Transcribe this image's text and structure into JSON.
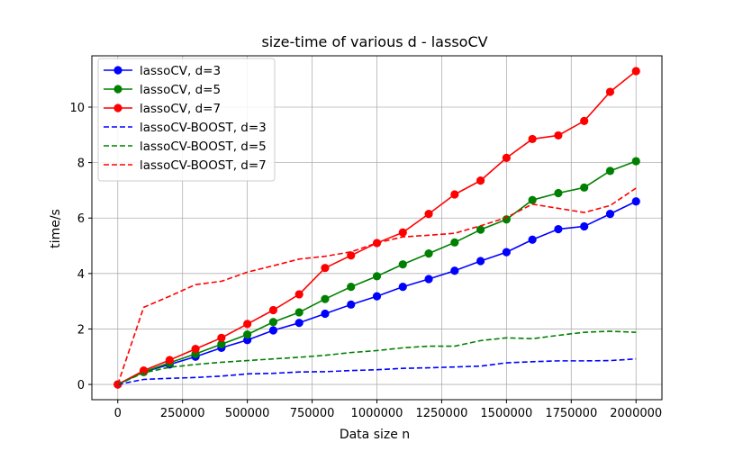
{
  "chart_data": {
    "type": "line",
    "title": "size-time of various d - lassoCV",
    "xlabel": "Data size n",
    "ylabel": "time/s",
    "xlim": [
      -100000,
      2100000
    ],
    "ylim": [
      -0.55,
      11.85
    ],
    "xticks": [
      0,
      250000,
      500000,
      750000,
      1000000,
      1250000,
      1500000,
      1750000,
      2000000
    ],
    "yticks": [
      0,
      2,
      4,
      6,
      8,
      10
    ],
    "grid": true,
    "legend_position": "upper-left",
    "x": [
      0,
      100000,
      200000,
      300000,
      400000,
      500000,
      600000,
      700000,
      800000,
      900000,
      1000000,
      1100000,
      1200000,
      1300000,
      1400000,
      1500000,
      1600000,
      1700000,
      1800000,
      1900000,
      2000000
    ],
    "series": [
      {
        "name": "lassoCV, d=3",
        "color": "#0000ff",
        "style": "solid-marker",
        "values": [
          0.0,
          0.45,
          0.72,
          1.0,
          1.32,
          1.6,
          1.95,
          2.22,
          2.55,
          2.88,
          3.18,
          3.52,
          3.8,
          4.1,
          4.45,
          4.77,
          5.22,
          5.6,
          5.7,
          6.15,
          6.6
        ]
      },
      {
        "name": "lassoCV, d=5",
        "color": "#008000",
        "style": "solid-marker",
        "values": [
          0.0,
          0.45,
          0.78,
          1.1,
          1.45,
          1.8,
          2.25,
          2.6,
          3.08,
          3.52,
          3.9,
          4.33,
          4.72,
          5.12,
          5.58,
          5.95,
          6.65,
          6.9,
          7.1,
          7.7,
          8.05
        ]
      },
      {
        "name": "lassoCV, d=7",
        "color": "#ff0000",
        "style": "solid-marker",
        "values": [
          0.0,
          0.5,
          0.88,
          1.28,
          1.68,
          2.18,
          2.68,
          3.25,
          4.2,
          4.65,
          5.1,
          5.48,
          6.15,
          6.85,
          7.35,
          8.17,
          8.85,
          8.98,
          9.5,
          10.55,
          11.3
        ]
      },
      {
        "name": "lassoCV-BOOST, d=3",
        "color": "#0000ff",
        "style": "dashed",
        "values": [
          0.0,
          0.18,
          0.22,
          0.25,
          0.3,
          0.38,
          0.4,
          0.45,
          0.46,
          0.5,
          0.53,
          0.58,
          0.6,
          0.63,
          0.66,
          0.78,
          0.82,
          0.85,
          0.85,
          0.86,
          0.92
        ]
      },
      {
        "name": "lassoCV-BOOST, d=5",
        "color": "#008000",
        "style": "dashed",
        "values": [
          0.0,
          0.42,
          0.62,
          0.72,
          0.8,
          0.86,
          0.92,
          0.98,
          1.05,
          1.15,
          1.22,
          1.32,
          1.38,
          1.38,
          1.58,
          1.68,
          1.65,
          1.77,
          1.88,
          1.92,
          1.88
        ]
      },
      {
        "name": "lassoCV-BOOST, d=7",
        "color": "#ff0000",
        "style": "dashed",
        "values": [
          0.0,
          2.78,
          3.18,
          3.6,
          3.72,
          4.05,
          4.28,
          4.52,
          4.62,
          4.78,
          5.1,
          5.32,
          5.38,
          5.45,
          5.72,
          6.02,
          6.5,
          6.35,
          6.2,
          6.45,
          7.08
        ]
      }
    ]
  }
}
